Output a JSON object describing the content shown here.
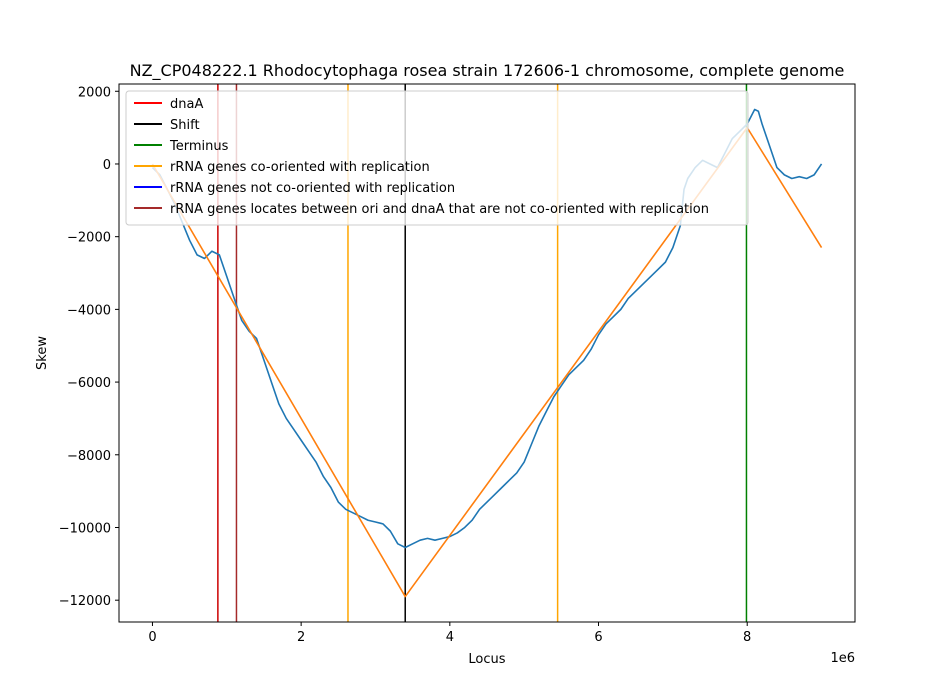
{
  "chart_data": {
    "type": "line",
    "title": "NZ_CP048222.1 Rhodocytophaga rosea strain 172606-1 chromosome, complete genome",
    "xlabel": "Locus",
    "ylabel": "Skew",
    "x_offset_label": "1e6",
    "xlim": [
      -0.45,
      9.45
    ],
    "ylim": [
      -12600,
      2200
    ],
    "x_ticks": [
      0,
      2,
      4,
      6,
      8
    ],
    "x_tick_labels": [
      "0",
      "2",
      "4",
      "6",
      "8"
    ],
    "y_ticks": [
      2000,
      0,
      -2000,
      -4000,
      -6000,
      -8000,
      -10000,
      -12000
    ],
    "y_tick_labels": [
      "2000",
      "0",
      "−2000",
      "−4000",
      "−6000",
      "−8000",
      "−10000",
      "−12000"
    ],
    "legend_position": "top-left",
    "legend": [
      {
        "label": "dnaA",
        "color": "#ff0000"
      },
      {
        "label": "Shift",
        "color": "#000000"
      },
      {
        "label": "Terminus",
        "color": "#008000"
      },
      {
        "label": "rRNA genes co-oriented with replication",
        "color": "#ffa500"
      },
      {
        "label": "rRNA genes not co-oriented with replication",
        "color": "#0000ff"
      },
      {
        "label": "rRNA genes locates between ori and dnaA that are not co-oriented with replication",
        "color": "#a52a2a"
      }
    ],
    "vertical_lines": [
      {
        "x": 0.88,
        "color": "#cc0000"
      },
      {
        "x": 1.13,
        "color": "#a52a2a"
      },
      {
        "x": 2.63,
        "color": "#ffa500"
      },
      {
        "x": 3.4,
        "color": "#000000"
      },
      {
        "x": 5.45,
        "color": "#ffa500"
      },
      {
        "x": 7.99,
        "color": "#008000"
      }
    ],
    "series": [
      {
        "color": "#1f77b4",
        "x": [
          0,
          0.1,
          0.2,
          0.3,
          0.4,
          0.5,
          0.6,
          0.7,
          0.8,
          0.9,
          1.0,
          1.1,
          1.2,
          1.3,
          1.4,
          1.5,
          1.6,
          1.7,
          1.8,
          1.9,
          2.0,
          2.1,
          2.2,
          2.3,
          2.4,
          2.5,
          2.6,
          2.7,
          2.8,
          2.9,
          3.0,
          3.1,
          3.2,
          3.3,
          3.4,
          3.5,
          3.6,
          3.7,
          3.8,
          3.9,
          4.0,
          4.1,
          4.2,
          4.3,
          4.4,
          4.5,
          4.6,
          4.7,
          4.8,
          4.9,
          5.0,
          5.1,
          5.2,
          5.3,
          5.4,
          5.5,
          5.6,
          5.7,
          5.8,
          5.9,
          6.0,
          6.1,
          6.2,
          6.3,
          6.4,
          6.5,
          6.6,
          6.7,
          6.8,
          6.9,
          7.0,
          7.1,
          7.15,
          7.2,
          7.3,
          7.4,
          7.5,
          7.6,
          7.7,
          7.8,
          7.9,
          8.0,
          8.05,
          8.1,
          8.15,
          8.2,
          8.3,
          8.4,
          8.5,
          8.6,
          8.7,
          8.8,
          8.9,
          9.0
        ],
        "y": [
          -100,
          -300,
          -700,
          -1100,
          -1600,
          -2100,
          -2500,
          -2600,
          -2400,
          -2500,
          -3100,
          -3700,
          -4300,
          -4600,
          -4800,
          -5400,
          -6000,
          -6600,
          -7000,
          -7300,
          -7600,
          -7900,
          -8200,
          -8600,
          -8900,
          -9300,
          -9500,
          -9600,
          -9700,
          -9800,
          -9850,
          -9900,
          -10100,
          -10450,
          -10550,
          -10450,
          -10350,
          -10300,
          -10350,
          -10300,
          -10250,
          -10150,
          -10000,
          -9800,
          -9500,
          -9300,
          -9100,
          -8900,
          -8700,
          -8500,
          -8200,
          -7700,
          -7200,
          -6800,
          -6400,
          -6100,
          -5800,
          -5600,
          -5400,
          -5100,
          -4700,
          -4400,
          -4200,
          -4000,
          -3700,
          -3500,
          -3300,
          -3100,
          -2900,
          -2700,
          -2300,
          -1700,
          -700,
          -400,
          -100,
          100,
          0,
          -100,
          300,
          700,
          900,
          1100,
          1300,
          1500,
          1450,
          1100,
          500,
          -100,
          -300,
          -400,
          -350,
          -400,
          -300,
          0
        ]
      },
      {
        "color": "#ff7f0e",
        "x": [
          0,
          3.4,
          8.0,
          9.0
        ],
        "y": [
          0,
          -11900,
          1000,
          -2300
        ]
      }
    ]
  }
}
